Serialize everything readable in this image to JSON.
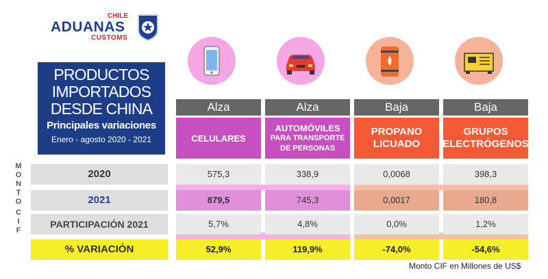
{
  "logo": {
    "chile": "CHILE",
    "aduanas": "ADUANAS",
    "customs": "CUSTOMS"
  },
  "title": {
    "line1": "PRODUCTOS",
    "line2": "IMPORTADOS",
    "line3": "DESDE CHINA",
    "subtitle": "Principales variaciones",
    "period": "Enero - agosto 2020 - 2021"
  },
  "side_label": {
    "top": "M O N T O",
    "bottom": "C I F"
  },
  "rows": {
    "r2020": "2020",
    "r2021": "2021",
    "part": "PARTICIPACIÓN 2021",
    "var": "% VARIACIÓN"
  },
  "products": [
    {
      "icon": "smartphone-icon",
      "trend": "Alza",
      "name1": "CELULARES",
      "name2": "",
      "name3": "",
      "v2020": "575,3",
      "v2021": "879,5",
      "part": "5,7%",
      "var": "52,9%"
    },
    {
      "icon": "car-icon",
      "trend": "Alza",
      "name1": "AUTOMÓVILES",
      "name2": "PARA TRANSPORTE",
      "name3": "DE PERSONAS",
      "v2020": "338,9",
      "v2021": "745,3",
      "part": "4,8%",
      "var": "119,9%"
    },
    {
      "icon": "gas-tank-icon",
      "trend": "Baja",
      "name1": "PROPANO",
      "name2": "LICUADO",
      "name3": "",
      "v2020": "0,0068",
      "v2021": "0,0017",
      "part": "0,0%",
      "var": "-74,0%"
    },
    {
      "icon": "generator-icon",
      "trend": "Baja",
      "name1": "GRUPOS",
      "name2": "ELECTRÓGENOS",
      "name3": "",
      "v2020": "398,3",
      "v2021": "180,8",
      "part": "1,2%",
      "var": "-54,6%"
    }
  ],
  "footnote": "Monto CIF en Millones de US$",
  "colors": {
    "navy": "#1d3e86",
    "magenta": "#c84fc0",
    "orange": "#f35a35",
    "yellow": "#f7ee2a",
    "grey": "#666666"
  }
}
